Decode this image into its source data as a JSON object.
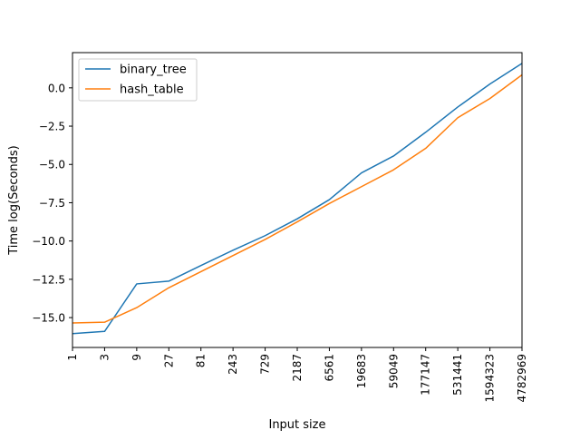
{
  "chart_data": {
    "type": "line",
    "title": "",
    "xlabel": "Input size",
    "ylabel": "Time log(Seconds)",
    "x_categories": [
      "1",
      "3",
      "9",
      "27",
      "81",
      "243",
      "729",
      "2187",
      "6561",
      "19683",
      "59049",
      "177147",
      "531441",
      "1594323",
      "4782969"
    ],
    "ylim": [
      -16.95,
      2.3
    ],
    "yticks": [
      0.0,
      -2.5,
      -5.0,
      -7.5,
      -10.0,
      -12.5,
      -15.0
    ],
    "ytick_labels": [
      "0.0",
      "−2.5",
      "−5.0",
      "−7.5",
      "−10.0",
      "−12.5",
      "−15.0"
    ],
    "grid": false,
    "legend_position": "top-left",
    "series": [
      {
        "name": "binary_tree",
        "color": "#1f77b4",
        "values": [
          -16.05,
          -15.9,
          -12.8,
          -12.62,
          -11.6,
          -10.6,
          -9.65,
          -8.55,
          -7.3,
          -5.55,
          -4.45,
          -2.9,
          -1.25,
          0.25,
          1.6
        ]
      },
      {
        "name": "hash_table",
        "color": "#ff7f0e",
        "values": [
          -15.35,
          -15.3,
          -14.35,
          -13.05,
          -12.0,
          -10.95,
          -9.9,
          -8.75,
          -7.55,
          -6.45,
          -5.35,
          -3.95,
          -1.95,
          -0.7,
          0.85
        ]
      }
    ]
  }
}
